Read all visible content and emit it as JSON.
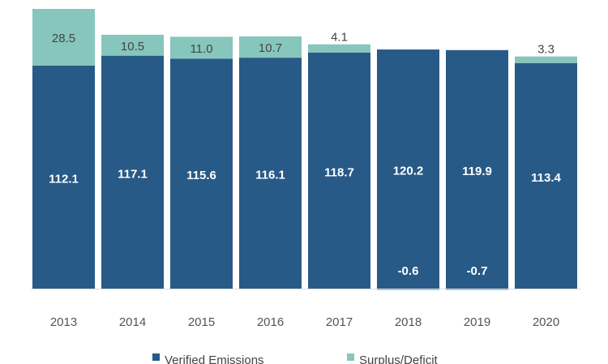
{
  "chart_data": {
    "type": "bar",
    "stacked": true,
    "categories": [
      "2013",
      "2014",
      "2015",
      "2016",
      "2017",
      "2018",
      "2019",
      "2020"
    ],
    "series": [
      {
        "name": "Verified Emissions",
        "color": "#285a87",
        "values": [
          112.1,
          117.1,
          115.6,
          116.1,
          118.7,
          120.2,
          119.9,
          113.4
        ]
      },
      {
        "name": "Surplus/Deficit",
        "color": "#86c6bd",
        "values": [
          28.5,
          10.5,
          11.0,
          10.7,
          4.1,
          -0.6,
          -0.7,
          3.3
        ]
      }
    ],
    "data_labels": true,
    "grid": false,
    "legend": "bottom",
    "ylim": [
      0,
      140.6
    ]
  }
}
